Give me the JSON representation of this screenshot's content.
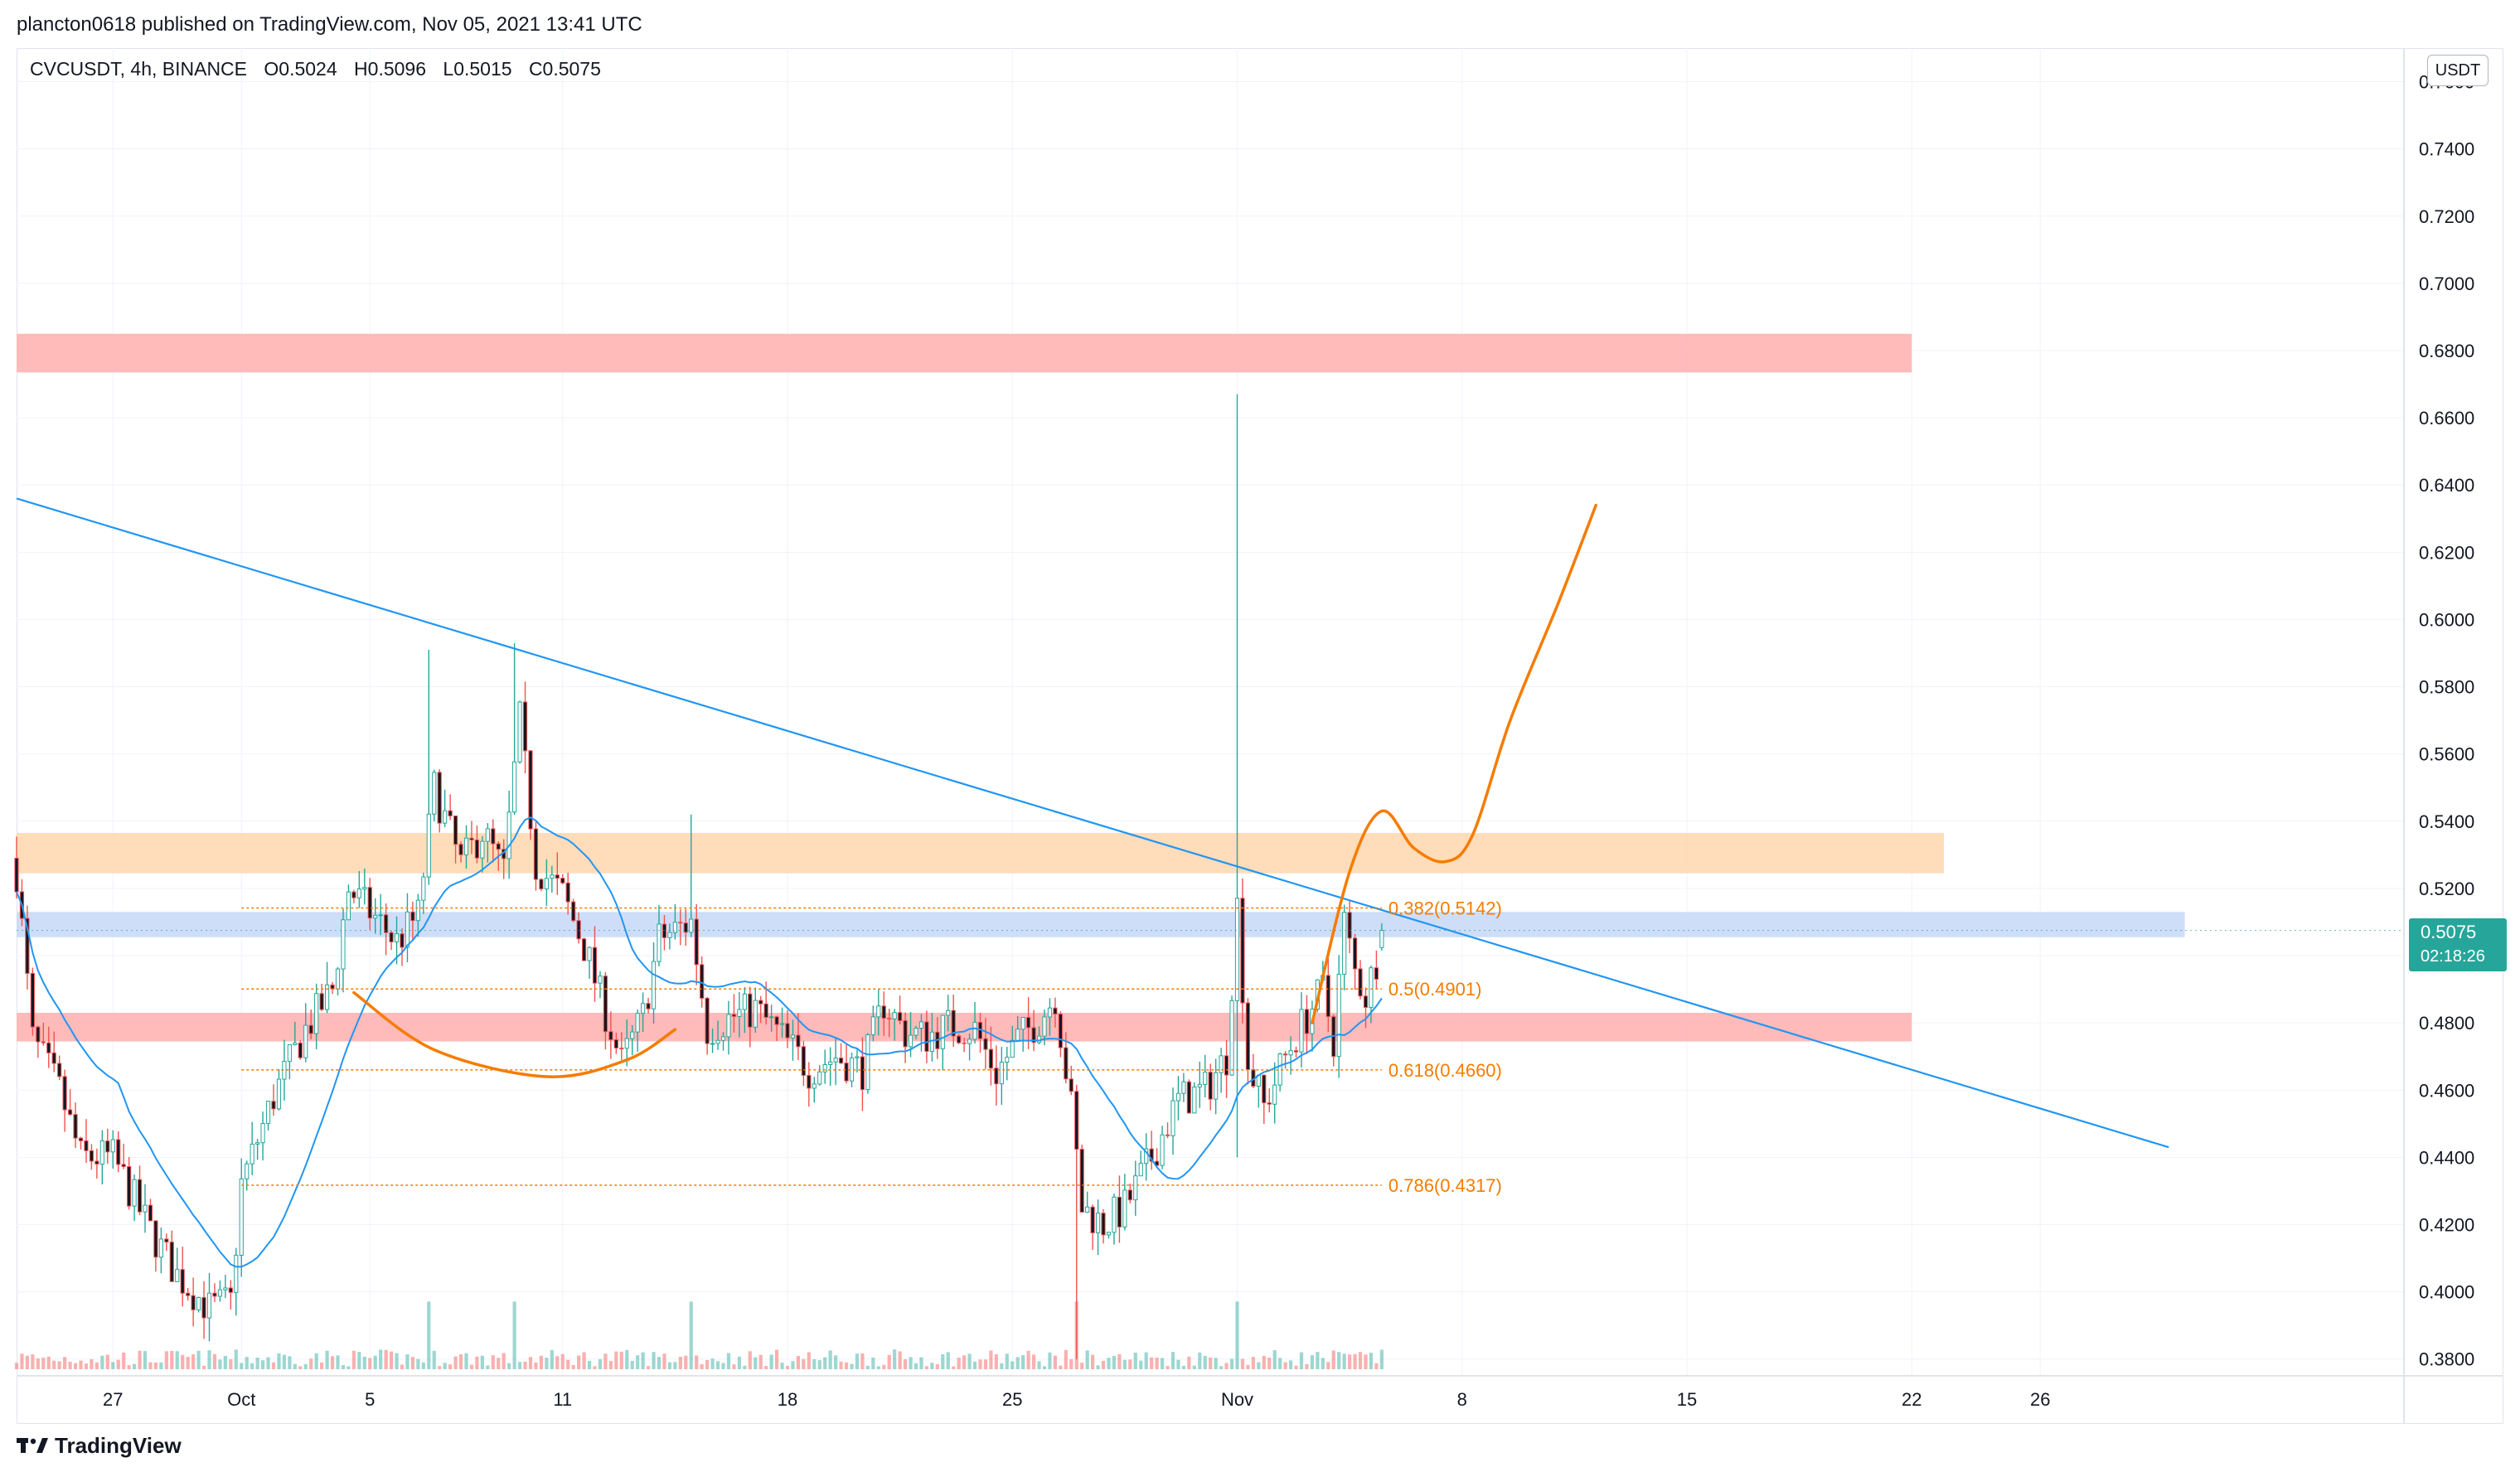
{
  "header": {
    "published_by": "plancton0618 published on TradingView.com, Nov 05, 2021 13:41 UTC"
  },
  "legend": {
    "symbol": "CVCUSDT, 4h, BINANCE",
    "open": "O0.5024",
    "high": "H0.5096",
    "low": "L0.5015",
    "close": "C0.5075"
  },
  "price_axis": {
    "unit": "USDT",
    "last_price": "0.5075",
    "countdown": "02:18:26"
  },
  "footer": {
    "brand": "TradingView"
  },
  "colors": {
    "up": "#26a69a",
    "down": "#ef5350",
    "candle_up_body": "#ffffff",
    "candle_down_body": "#131722",
    "ma": "#2196f3",
    "trendline": "#2196f3",
    "projection": "#f57c00",
    "fib": "#f57c00",
    "resistance_zone": "#ffb3b3",
    "supply_zone": "#ffd8b3",
    "blue_zone": "#c5d8f8",
    "grid": "#f0f3fa"
  },
  "chart_data": {
    "type": "candlestick",
    "symbol": "CVCUSDT",
    "timeframe": "4h",
    "exchange": "BINANCE",
    "ylim": [
      0.375,
      0.77
    ],
    "y_ticks": [
      "0.3800",
      "0.4000",
      "0.4200",
      "0.4400",
      "0.4600",
      "0.4800",
      "0.5000",
      "0.5200",
      "0.5400",
      "0.5600",
      "0.5800",
      "0.6000",
      "0.6200",
      "0.6400",
      "0.6600",
      "0.6800",
      "0.7000",
      "0.7200",
      "0.7400",
      "0.7600"
    ],
    "x_ticks": [
      {
        "label": "27",
        "date": "2021-09-27"
      },
      {
        "label": "Oct",
        "date": "2021-10-01"
      },
      {
        "label": "5",
        "date": "2021-10-05"
      },
      {
        "label": "11",
        "date": "2021-10-11"
      },
      {
        "label": "18",
        "date": "2021-10-18"
      },
      {
        "label": "25",
        "date": "2021-10-25"
      },
      {
        "label": "Nov",
        "date": "2021-11-01"
      },
      {
        "label": "8",
        "date": "2021-11-08"
      },
      {
        "label": "15",
        "date": "2021-11-15"
      },
      {
        "label": "22",
        "date": "2021-11-22"
      },
      {
        "label": "26",
        "date": "2021-11-26"
      }
    ],
    "waypoints": [
      {
        "date": "2021-09-24T00:00",
        "price": 0.525
      },
      {
        "date": "2021-09-24T12:00",
        "price": 0.475
      },
      {
        "date": "2021-09-25T08:00",
        "price": 0.46
      },
      {
        "date": "2021-09-26T00:00",
        "price": 0.44
      },
      {
        "date": "2021-09-27T00:00",
        "price": 0.44
      },
      {
        "date": "2021-09-28T04:00",
        "price": 0.418
      },
      {
        "date": "2021-09-29T00:00",
        "price": 0.405
      },
      {
        "date": "2021-09-30T00:00",
        "price": 0.395
      },
      {
        "date": "2021-09-30T16:00",
        "price": 0.397
      },
      {
        "date": "2021-10-01T00:00",
        "price": 0.432
      },
      {
        "date": "2021-10-02T00:00",
        "price": 0.458
      },
      {
        "date": "2021-10-03T00:00",
        "price": 0.478
      },
      {
        "date": "2021-10-03T20:00",
        "price": 0.49
      },
      {
        "date": "2021-10-04T08:00",
        "price": 0.52
      },
      {
        "date": "2021-10-05T00:00",
        "price": 0.513
      },
      {
        "date": "2021-10-05T20:00",
        "price": 0.504
      },
      {
        "date": "2021-10-06T12:00",
        "price": 0.512
      },
      {
        "date": "2021-10-07T00:00",
        "price": 0.55
      },
      {
        "date": "2021-10-07T20:00",
        "price": 0.527
      },
      {
        "date": "2021-10-08T12:00",
        "price": 0.537
      },
      {
        "date": "2021-10-09T04:00",
        "price": 0.525
      },
      {
        "date": "2021-10-09T16:00",
        "price": 0.57
      },
      {
        "date": "2021-10-10T04:00",
        "price": 0.527
      },
      {
        "date": "2021-10-11T00:00",
        "price": 0.518
      },
      {
        "date": "2021-10-11T16:00",
        "price": 0.503
      },
      {
        "date": "2021-10-12T08:00",
        "price": 0.483
      },
      {
        "date": "2021-10-12T20:00",
        "price": 0.468
      },
      {
        "date": "2021-10-13T12:00",
        "price": 0.482
      },
      {
        "date": "2021-10-14T00:00",
        "price": 0.505
      },
      {
        "date": "2021-10-15T00:00",
        "price": 0.51
      },
      {
        "date": "2021-10-15T12:00",
        "price": 0.478
      },
      {
        "date": "2021-10-16T08:00",
        "price": 0.482
      },
      {
        "date": "2021-10-17T00:00",
        "price": 0.484
      },
      {
        "date": "2021-10-18T00:00",
        "price": 0.474
      },
      {
        "date": "2021-10-18T16:00",
        "price": 0.466
      },
      {
        "date": "2021-10-19T12:00",
        "price": 0.47
      },
      {
        "date": "2021-10-20T08:00",
        "price": 0.466
      },
      {
        "date": "2021-10-21T00:00",
        "price": 0.486
      },
      {
        "date": "2021-10-21T16:00",
        "price": 0.477
      },
      {
        "date": "2021-10-22T08:00",
        "price": 0.476
      },
      {
        "date": "2021-10-23T00:00",
        "price": 0.479
      },
      {
        "date": "2021-10-23T20:00",
        "price": 0.478
      },
      {
        "date": "2021-10-24T12:00",
        "price": 0.465
      },
      {
        "date": "2021-10-25T04:00",
        "price": 0.475
      },
      {
        "date": "2021-10-25T20:00",
        "price": 0.481
      },
      {
        "date": "2021-10-26T08:00",
        "price": 0.488
      },
      {
        "date": "2021-10-26T20:00",
        "price": 0.455
      },
      {
        "date": "2021-10-27T04:00",
        "price": 0.425
      },
      {
        "date": "2021-10-27T20:00",
        "price": 0.42
      },
      {
        "date": "2021-10-28T12:00",
        "price": 0.425
      },
      {
        "date": "2021-10-29T08:00",
        "price": 0.44
      },
      {
        "date": "2021-10-30T04:00",
        "price": 0.457
      },
      {
        "date": "2021-10-31T00:00",
        "price": 0.46
      },
      {
        "date": "2021-10-31T16:00",
        "price": 0.47
      },
      {
        "date": "2021-11-01T00:00",
        "price": 0.515
      },
      {
        "date": "2021-11-01T08:00",
        "price": 0.468
      },
      {
        "date": "2021-11-01T20:00",
        "price": 0.455
      },
      {
        "date": "2021-11-02T12:00",
        "price": 0.47
      },
      {
        "date": "2021-11-03T04:00",
        "price": 0.482
      },
      {
        "date": "2021-11-03T16:00",
        "price": 0.49
      },
      {
        "date": "2021-11-04T00:00",
        "price": 0.475
      },
      {
        "date": "2021-11-04T08:00",
        "price": 0.51
      },
      {
        "date": "2021-11-04T16:00",
        "price": 0.495
      },
      {
        "date": "2021-11-05T00:00",
        "price": 0.488
      },
      {
        "date": "2021-11-05T08:00",
        "price": 0.499
      },
      {
        "date": "2021-11-05T14:00",
        "price": 0.5075
      }
    ],
    "ma_period": 20,
    "trendline": {
      "start": {
        "date": "2021-09-24T00:00",
        "price": 0.636
      },
      "end": {
        "date": "2021-11-30T00:00",
        "price": 0.443
      }
    },
    "zones": [
      {
        "name": "resistance",
        "from": 0.6735,
        "to": 0.685,
        "end_date": "2021-11-22"
      },
      {
        "name": "supply",
        "from": 0.5245,
        "to": 0.5365,
        "end_date": "2021-11-23"
      },
      {
        "name": "blue",
        "from": 0.5055,
        "to": 0.513,
        "end_date": "2021-11-30T12:00"
      },
      {
        "name": "support",
        "from": 0.4745,
        "to": 0.483,
        "end_date": "2021-11-22"
      }
    ],
    "fib_levels": [
      {
        "label": "0.382(0.5142)",
        "price": 0.5142
      },
      {
        "label": "0.5(0.4901)",
        "price": 0.4901
      },
      {
        "label": "0.618(0.4660)",
        "price": 0.466
      },
      {
        "label": "0.786(0.4317)",
        "price": 0.4317
      }
    ],
    "fib_range": {
      "start_date": "2021-10-01",
      "end_date": "2021-11-05T12:00"
    },
    "spikes": [
      {
        "date": "2021-11-01T00:00",
        "high": 0.667,
        "low": 0.44
      },
      {
        "date": "2021-10-06T20:00",
        "high": 0.591
      },
      {
        "date": "2021-10-09T12:00",
        "high": 0.593
      },
      {
        "date": "2021-10-15T00:00",
        "high": 0.542
      },
      {
        "date": "2021-10-27T00:00",
        "low": 0.38
      }
    ],
    "projection_curve": [
      {
        "date": "2021-11-03T08:00",
        "price": 0.48
      },
      {
        "date": "2021-11-04T12:00",
        "price": 0.525
      },
      {
        "date": "2021-11-05T12:00",
        "price": 0.543
      },
      {
        "date": "2021-11-06T12:00",
        "price": 0.532
      },
      {
        "date": "2021-11-07T12:00",
        "price": 0.528
      },
      {
        "date": "2021-11-08T08:00",
        "price": 0.536
      },
      {
        "date": "2021-11-09T12:00",
        "price": 0.57
      },
      {
        "date": "2021-11-11T00:00",
        "price": 0.605
      },
      {
        "date": "2021-11-12T04:00",
        "price": 0.634
      }
    ],
    "rounding_curve": [
      {
        "date": "2021-10-04T12:00",
        "price": 0.489
      },
      {
        "date": "2021-10-07T00:00",
        "price": 0.472
      },
      {
        "date": "2021-10-10T12:00",
        "price": 0.464
      },
      {
        "date": "2021-10-13T00:00",
        "price": 0.469
      },
      {
        "date": "2021-10-14T12:00",
        "price": 0.478
      }
    ]
  }
}
